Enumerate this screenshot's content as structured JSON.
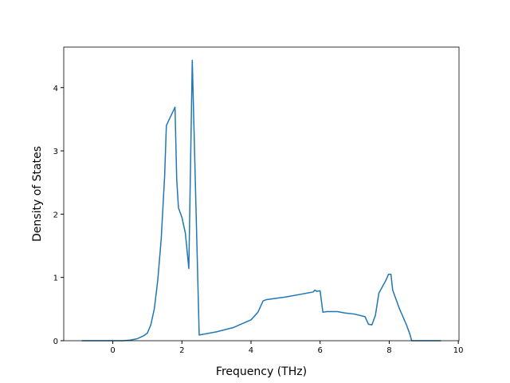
{
  "chart_data": {
    "type": "line",
    "xlabel": "Frequency (THz)",
    "ylabel": "Density of States",
    "x": [
      -0.9,
      0.3,
      0.5,
      0.7,
      0.9,
      1.0,
      1.1,
      1.2,
      1.3,
      1.4,
      1.5,
      1.55,
      1.8,
      1.85,
      1.9,
      2.0,
      2.1,
      2.2,
      2.3,
      2.5,
      3.0,
      3.5,
      4.0,
      4.2,
      4.35,
      4.45,
      5.0,
      5.5,
      5.8,
      5.85,
      5.9,
      6.0,
      6.08,
      6.2,
      6.5,
      6.7,
      7.0,
      7.3,
      7.4,
      7.5,
      7.6,
      7.7,
      7.8,
      7.9,
      7.98,
      8.05,
      8.1,
      8.3,
      8.5,
      8.6,
      8.65,
      9.5
    ],
    "series": [
      {
        "color": "#1f77b4",
        "values": [
          0,
          0,
          0.01,
          0.03,
          0.08,
          0.12,
          0.25,
          0.5,
          0.95,
          1.6,
          2.6,
          3.4,
          3.69,
          2.55,
          2.1,
          1.95,
          1.7,
          1.14,
          4.43,
          0.09,
          0.14,
          0.21,
          0.33,
          0.45,
          0.63,
          0.65,
          0.69,
          0.74,
          0.77,
          0.8,
          0.78,
          0.79,
          0.45,
          0.46,
          0.46,
          0.44,
          0.42,
          0.38,
          0.26,
          0.25,
          0.4,
          0.75,
          0.85,
          0.95,
          1.05,
          1.05,
          0.8,
          0.5,
          0.25,
          0.1,
          0,
          0
        ]
      }
    ],
    "xlim": [
      -1.42,
      10.02
    ],
    "ylim": [
      0,
      4.64
    ],
    "xticks": [
      0,
      2,
      4,
      6,
      8,
      10
    ],
    "yticks": [
      0,
      1,
      2,
      3,
      4
    ]
  }
}
